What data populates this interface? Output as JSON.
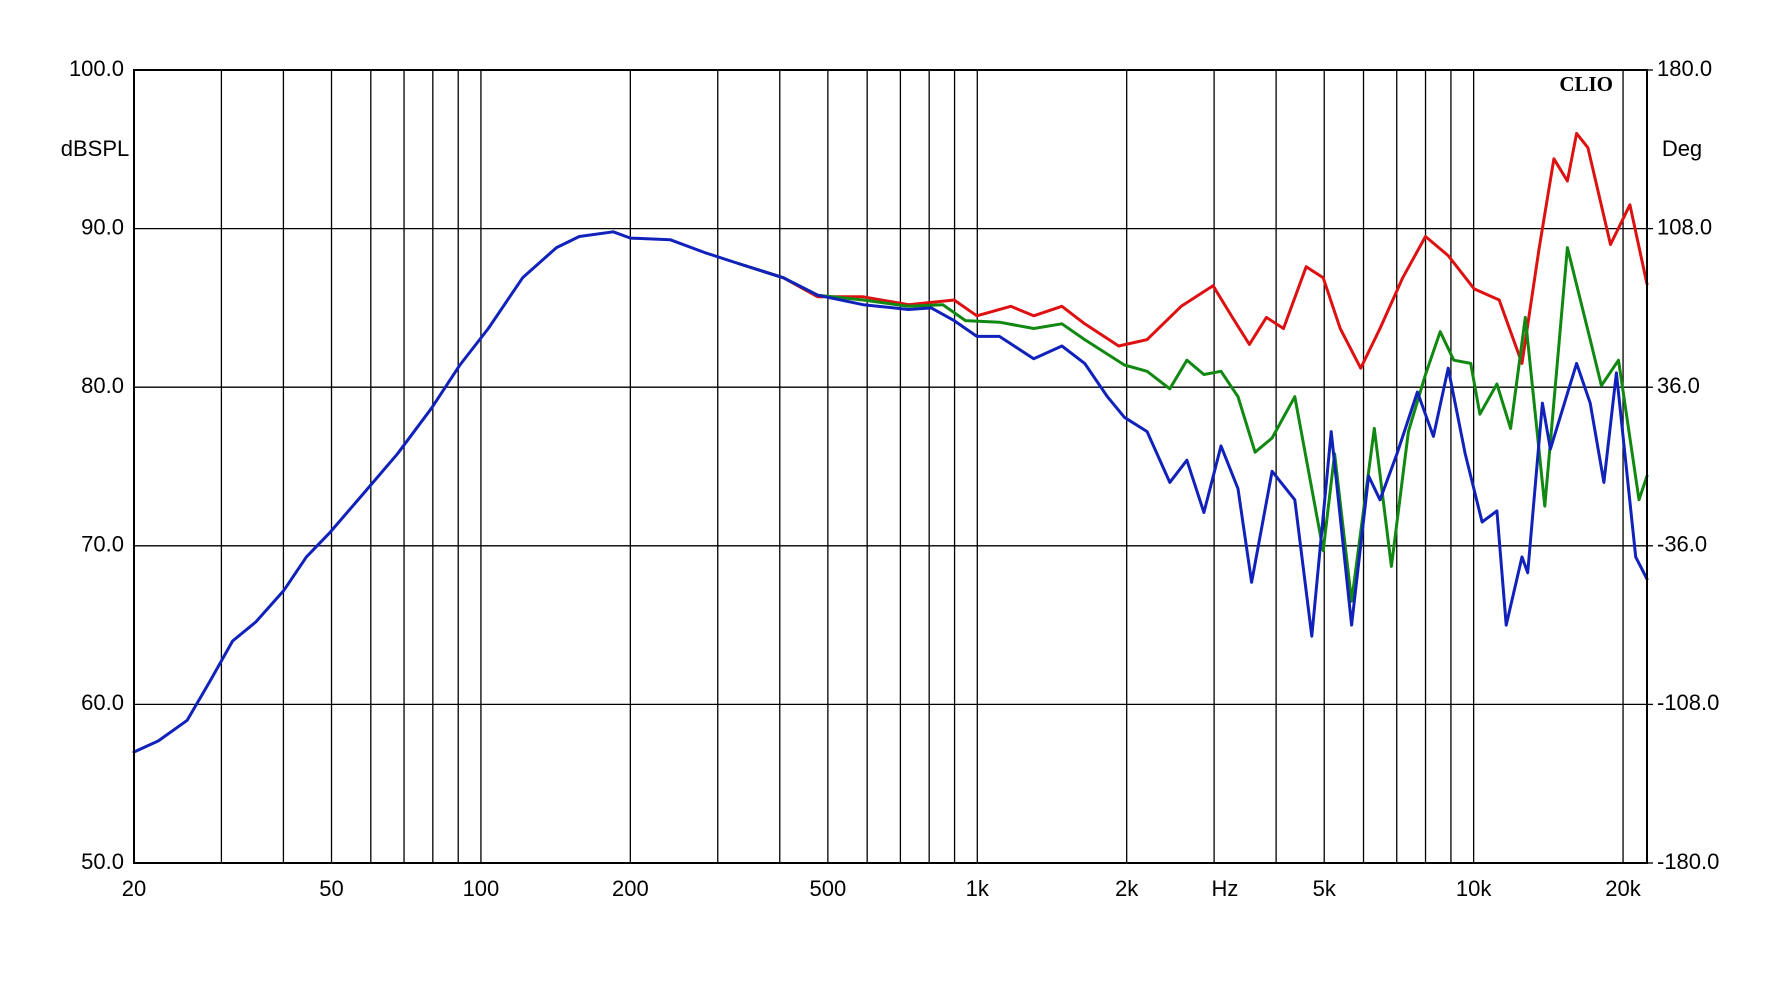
{
  "chart_data": {
    "type": "line",
    "brand": "CLIO",
    "ylabel": "dBSPL",
    "y2label": "Deg",
    "xlabel": "Hz",
    "xscale": "log",
    "grid": true,
    "xlim": [
      20,
      22350
    ],
    "xticks": [
      20,
      50,
      100,
      200,
      500,
      {
        "value": 1000,
        "label": "1k"
      },
      {
        "value": 2000,
        "label": "2k"
      },
      {
        "value": 5000,
        "label": "5k"
      },
      {
        "value": 10000,
        "label": "10k"
      },
      {
        "value": 20000,
        "label": "20k"
      }
    ],
    "xminor": [
      30,
      40,
      60,
      70,
      80,
      90,
      300,
      400,
      600,
      700,
      800,
      900,
      3000,
      4000,
      6000,
      7000,
      8000,
      9000
    ],
    "ylim": [
      50,
      100
    ],
    "yticks": [
      {
        "value": 50,
        "label": "50.0"
      },
      {
        "value": 60,
        "label": "60.0"
      },
      {
        "value": 70,
        "label": "70.0"
      },
      {
        "value": 80,
        "label": "80.0"
      },
      {
        "value": 90,
        "label": "90.0"
      },
      {
        "value": 100,
        "label": "100.0"
      }
    ],
    "y2lim": [
      -180,
      180
    ],
    "y2ticks": [
      {
        "value": -180,
        "label": "-180.0"
      },
      {
        "value": -108,
        "label": "-108.0"
      },
      {
        "value": -36,
        "label": "-36.0"
      },
      {
        "value": 36,
        "label": "36.0"
      },
      {
        "value": 108,
        "label": "108.0"
      },
      {
        "value": 180,
        "label": "180.0"
      }
    ],
    "series": [
      {
        "color": "#dd1111",
        "x": [
          330,
          407,
          477,
          589,
          727,
          898,
          998,
          1168,
          1299,
          1481,
          1646,
          1927,
          2199,
          2575,
          2985,
          3265,
          3533,
          3824,
          4139,
          4598,
          4977,
          5386,
          5922,
          6478,
          7195,
          8000,
          8885,
          10025,
          11260,
          12515,
          13540,
          14510,
          15450,
          16120,
          16990,
          18870,
          20650,
          22350
        ],
        "values": [
          87.8,
          86.9,
          85.7,
          85.7,
          85.2,
          85.5,
          84.5,
          85.1,
          84.5,
          85.1,
          84.0,
          82.6,
          83.0,
          85.1,
          86.4,
          84.4,
          82.7,
          84.4,
          83.7,
          87.6,
          86.9,
          83.7,
          81.2,
          83.7,
          86.9,
          89.5,
          88.3,
          86.2,
          85.5,
          81.5,
          88.7,
          94.4,
          93.0,
          96.0,
          95.1,
          89.0,
          91.5,
          86.5
        ]
      },
      {
        "color": "#118811",
        "x": [
          330,
          407,
          477,
          589,
          727,
          852,
          947,
          1108,
          1299,
          1481,
          1646,
          1979,
          2199,
          2443,
          2644,
          2861,
          3097,
          3351,
          3628,
          3926,
          4363,
          4977,
          5247,
          5678,
          6308,
          6828,
          7390,
          8000,
          8563,
          9120,
          9866,
          10295,
          11140,
          11870,
          12710,
          13910,
          15450,
          17170,
          18090,
          19580,
          21540,
          22350
        ],
        "values": [
          87.8,
          86.9,
          85.8,
          85.5,
          85.1,
          85.2,
          84.2,
          84.1,
          83.7,
          84.0,
          83.0,
          81.4,
          81.0,
          79.9,
          81.7,
          80.8,
          81.0,
          79.4,
          75.9,
          76.8,
          79.4,
          69.7,
          75.8,
          66.5,
          77.4,
          68.7,
          77.2,
          80.8,
          83.5,
          81.7,
          81.5,
          78.3,
          80.2,
          77.4,
          84.4,
          72.5,
          88.8,
          83.0,
          80.1,
          81.7,
          72.9,
          74.4
        ]
      },
      {
        "color": "#1122bb",
        "x": [
          20,
          22.4,
          25.6,
          28.5,
          31.6,
          35.2,
          40.1,
          44.5,
          49.5,
          58.0,
          67.9,
          79.6,
          90.7,
          103.5,
          121.3,
          142.0,
          157.8,
          184.8,
          200,
          240.5,
          281.7,
          330,
          407,
          477,
          589,
          727,
          808,
          898,
          998,
          1108,
          1299,
          1481,
          1646,
          1829,
          1979,
          2199,
          2443,
          2644,
          2861,
          3097,
          3351,
          3570,
          3926,
          4363,
          4721,
          5164,
          5678,
          6144,
          6478,
          7009,
          7705,
          8296,
          8885,
          9616,
          10402,
          11140,
          11630,
          12515,
          12850,
          13760,
          14280,
          16120,
          17170,
          18300,
          19390,
          21210,
          22350
        ],
        "values": [
          57.0,
          57.7,
          59.0,
          61.5,
          64.0,
          65.2,
          67.2,
          69.3,
          70.8,
          73.3,
          75.8,
          78.7,
          81.4,
          83.7,
          86.9,
          88.8,
          89.5,
          89.8,
          89.4,
          89.3,
          88.5,
          87.8,
          86.9,
          85.8,
          85.2,
          84.9,
          85.0,
          84.2,
          83.2,
          83.2,
          81.8,
          82.6,
          81.5,
          79.4,
          78.1,
          77.2,
          74.0,
          75.4,
          72.1,
          76.3,
          73.6,
          67.7,
          74.7,
          72.9,
          64.3,
          77.2,
          65.0,
          74.4,
          72.9,
          75.8,
          79.7,
          76.9,
          81.2,
          75.8,
          71.5,
          72.2,
          65.0,
          69.3,
          68.3,
          79.0,
          76.1,
          81.5,
          79.0,
          74.0,
          80.9,
          69.3,
          67.9
        ]
      }
    ]
  }
}
